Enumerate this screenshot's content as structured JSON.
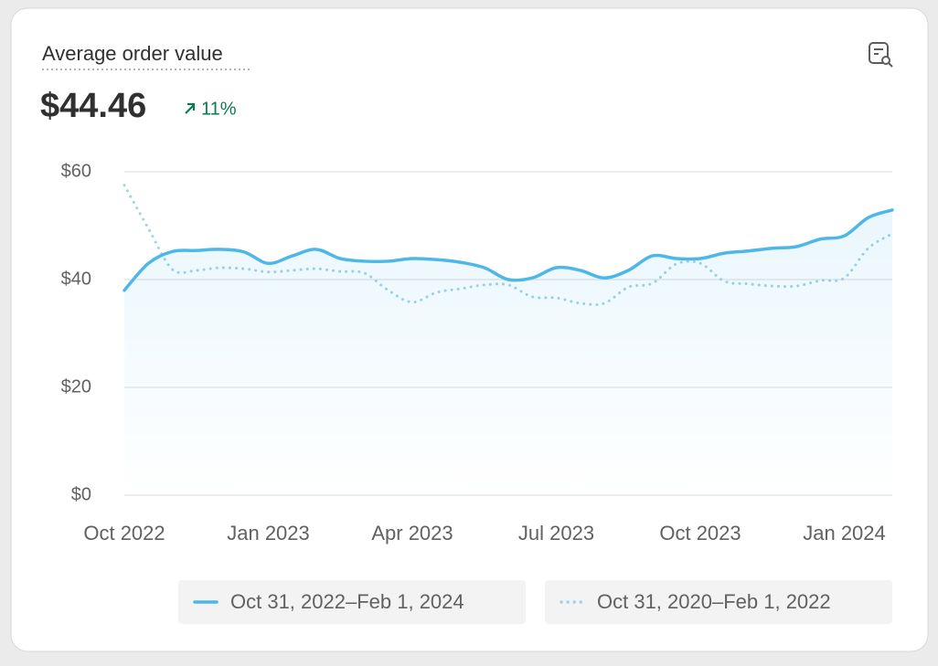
{
  "chart_data": {
    "type": "line",
    "title": "Average order value",
    "metric_value": "$44.46",
    "change": "11%",
    "categories": [
      "Oct 2022",
      null,
      null,
      null,
      null,
      null,
      "Jan 2023",
      null,
      null,
      null,
      null,
      null,
      "Apr 2023",
      null,
      null,
      null,
      null,
      null,
      "Jul 2023",
      null,
      null,
      null,
      null,
      null,
      "Oct 2023",
      null,
      null,
      null,
      null,
      null,
      "Jan 2024",
      null,
      null
    ],
    "series": [
      {
        "name": "Oct 31, 2022–Feb 1, 2024",
        "color": "#4db8e8",
        "style": "solid",
        "values": [
          38,
          43,
          45.2,
          45.4,
          45.6,
          45.1,
          43,
          44.4,
          45.6,
          43.9,
          43.4,
          43.4,
          43.9,
          43.7,
          43.2,
          42.2,
          40,
          40.3,
          42.2,
          41.7,
          40.3,
          41.7,
          44.4,
          43.9,
          43.9,
          44.9,
          45.3,
          45.8,
          46.1,
          47.5,
          48.1,
          51.5,
          52.9
        ]
      },
      {
        "name": "Oct 31, 2020–Feb 1, 2022",
        "color": "#9dd3ec",
        "style": "dotted",
        "values": [
          57.5,
          49.5,
          41.9,
          41.7,
          42.2,
          42,
          41.4,
          41.7,
          42,
          41.5,
          41.2,
          38,
          35.8,
          37.6,
          38.3,
          39,
          39,
          36.8,
          36.6,
          35.6,
          35.6,
          38.6,
          39.3,
          42.9,
          43,
          39.7,
          39.2,
          38.8,
          38.8,
          39.8,
          40.3,
          45.8,
          48.5
        ]
      }
    ],
    "ylim": [
      0,
      60
    ],
    "yticks": [
      {
        "value": 0,
        "label": "$0"
      },
      {
        "value": 20,
        "label": "$20"
      },
      {
        "value": 40,
        "label": "$40"
      },
      {
        "value": 60,
        "label": "$60"
      }
    ],
    "grid": true
  }
}
